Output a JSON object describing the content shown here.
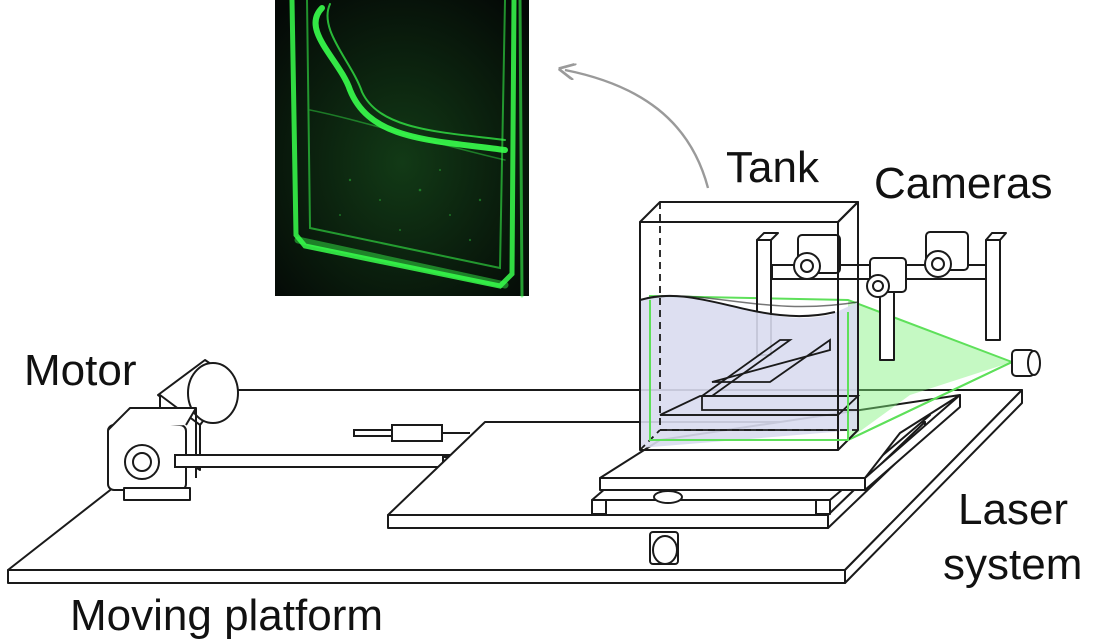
{
  "labels": {
    "tank": "Tank",
    "cameras": "Cameras",
    "motor": "Motor",
    "laser_line1": "Laser",
    "laser_line2": "system",
    "platform": "Moving platform"
  },
  "colors": {
    "outline": "#1a1a1a",
    "water": "#d9dcf0",
    "laser": "#7ef27a",
    "photo_bg": "#0a140c",
    "photo_glow": "#38ff4c",
    "arrow": "#9a9a9a"
  }
}
